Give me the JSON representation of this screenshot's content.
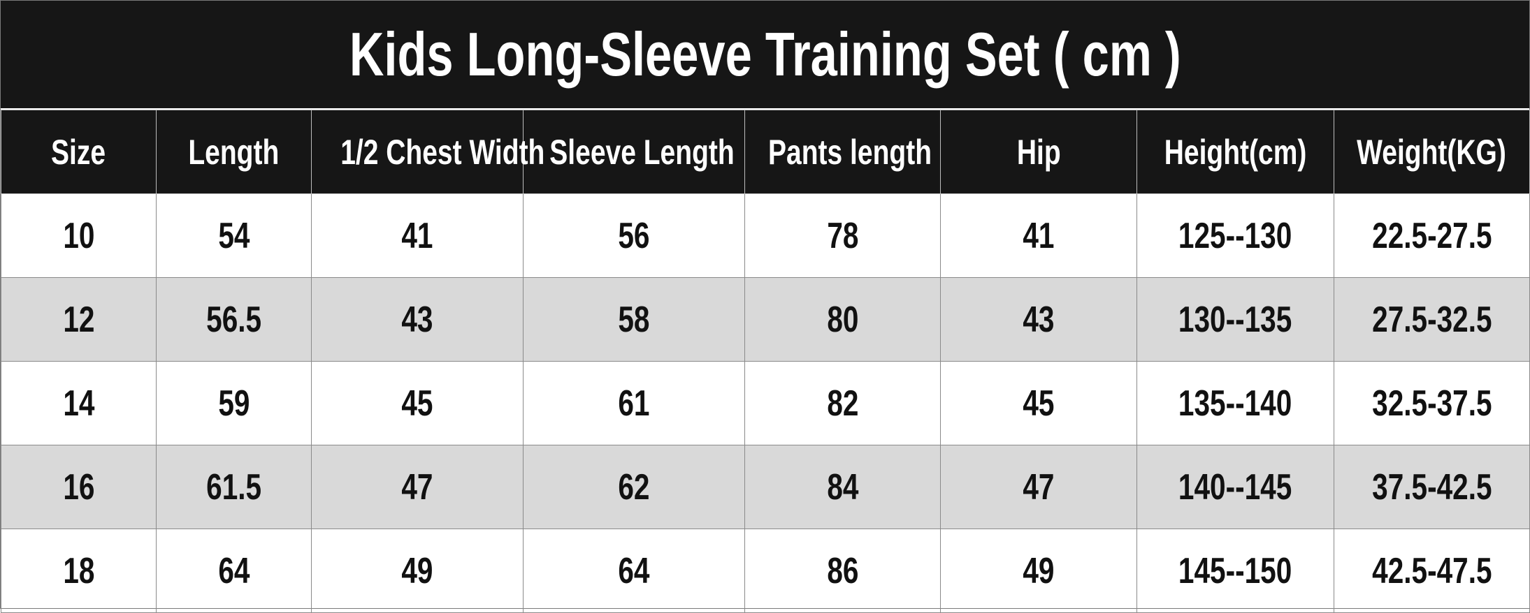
{
  "title": "Kids Long-Sleeve Training Set ( cm )",
  "headers": [
    "Size",
    "Length",
    "1/2 Chest Width",
    "Sleeve Length",
    "Pants length",
    "Hip",
    "Height(cm)",
    "Weight(KG)"
  ],
  "rows": [
    [
      "10",
      "54",
      "41",
      "56",
      "78",
      "41",
      "125--130",
      "22.5-27.5"
    ],
    [
      "12",
      "56.5",
      "43",
      "58",
      "80",
      "43",
      "130--135",
      "27.5-32.5"
    ],
    [
      "14",
      "59",
      "45",
      "61",
      "82",
      "45",
      "135--140",
      "32.5-37.5"
    ],
    [
      "16",
      "61.5",
      "47",
      "62",
      "84",
      "47",
      "140--145",
      "37.5-42.5"
    ],
    [
      "18",
      "64",
      "49",
      "64",
      "86",
      "49",
      "145--150",
      "42.5-47.5"
    ]
  ],
  "colors": {
    "header_bg": "#161616",
    "header_text": "#ffffff",
    "alt_row_bg": "#d9d9d9"
  }
}
